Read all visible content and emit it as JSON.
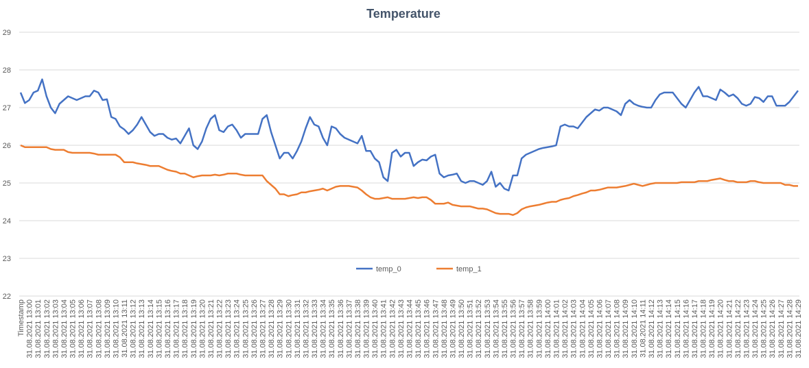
{
  "chart_data": {
    "type": "line",
    "title": "Temperature",
    "categories": [
      "Timestamp",
      null,
      "31.08.2021 13:00",
      null,
      "31.08.2021 13:01",
      null,
      "31.08.2021 13:02",
      null,
      "31.08.2021 13:03",
      null,
      "31.08.2021 13:04",
      null,
      "31.08.2021 13:05",
      null,
      "31.08.2021 13:06",
      null,
      "31.08.2021 13:07",
      null,
      "31.08.2021 13:08",
      null,
      "31.08.2021 13:09",
      null,
      "31.08.2021 13:10",
      null,
      "31.08.2021 13:11",
      null,
      "31.08.2021 13:12",
      null,
      "31.08.2021 13:13",
      null,
      "31.08.2021 13:14",
      null,
      "31.08.2021 13:15",
      null,
      "31.08.2021 13:16",
      null,
      "31.08.2021 13:17",
      null,
      "31.08.2021 13:18",
      null,
      "31.08.2021 13:19",
      null,
      "31.08.2021 13:20",
      null,
      "31.08.2021 13:21",
      null,
      "31.08.2021 13:22",
      null,
      "31.08.2021 13:23",
      null,
      "31.08.2021 13:24",
      null,
      "31.08.2021 13:25",
      null,
      "31.08.2021 13:26",
      null,
      "31.08.2021 13:27",
      null,
      "31.08.2021 13:28",
      null,
      "31.08.2021 13:29",
      null,
      "31.08.2021 13:30",
      null,
      "31.08.2021 13:31",
      null,
      "31.08.2021 13:32",
      null,
      "31.08.2021 13:33",
      null,
      "31.08.2021 13:34",
      null,
      "31.08.2021 13:35",
      null,
      "31.08.2021 13:36",
      null,
      "31.08.2021 13:37",
      null,
      "31.08.2021 13:38",
      null,
      "31.08.2021 13:39",
      null,
      "31.08.2021 13:40",
      null,
      "31.08.2021 13:41",
      null,
      "31.08.2021 13:42",
      null,
      "31.08.2021 13:43",
      null,
      "31.08.2021 13:44",
      null,
      "31.08.2021 13:45",
      null,
      "31.08.2021 13:46",
      null,
      "31.08.2021 13:47",
      null,
      "31.08.2021 13:48",
      null,
      "31.08.2021 13:49",
      null,
      "31.08.2021 13:50",
      null,
      "31.08.2021 13:51",
      null,
      "31.08.2021 13:52",
      null,
      "31.08.2021 13:53",
      null,
      "31.08.2021 13:54",
      null,
      "31.08.2021 13:55",
      null,
      "31.08.2021 13:56",
      null,
      "31.08.2021 13:57",
      null,
      "31.08.2021 13:58",
      null,
      "31.08.2021 13:59",
      null,
      "31.08.2021 14:00",
      null,
      "31.08.2021 14:01",
      null,
      "31.08.2021 14:02",
      null,
      "31.08.2021 14:03",
      null,
      "31.08.2021 14:04",
      null,
      "31.08.2021 14:05",
      null,
      "31.08.2021 14:06",
      null,
      "31.08.2021 14:07",
      null,
      "31.08.2021 14:08",
      null,
      "31.08.2021 14:09",
      null,
      "31.08.2021 14:10",
      null,
      "31.08.2021 14:11",
      null,
      "31.08.2021 14:12",
      null,
      "31.08.2021 14:13",
      null,
      "31.08.2021 14:14",
      null,
      "31.08.2021 14:15",
      null,
      "31.08.2021 14:16",
      null,
      "31.08.2021 14:17",
      null,
      "31.08.2021 14:18",
      null,
      "31.08.2021 14:19",
      null,
      "31.08.2021 14:20",
      null,
      "31.08.2021 14:21",
      null,
      "31.08.2021 14:22",
      null,
      "31.08.2021 14:23",
      null,
      "31.08.2021 14:24",
      null,
      "31.08.2021 14:25",
      null,
      "31.08.2021 14:26",
      null,
      "31.08.2021 14:27",
      null,
      "31.08.2021 14:28",
      null,
      "31.08.2021 14:29"
    ],
    "series": [
      {
        "name": "temp_0",
        "color": "#4472c4",
        "values": [
          27.4,
          27.12,
          27.2,
          27.4,
          27.45,
          27.75,
          27.3,
          27.0,
          26.85,
          27.1,
          27.2,
          27.3,
          27.25,
          27.2,
          27.25,
          27.3,
          27.3,
          27.45,
          27.4,
          27.2,
          27.22,
          26.75,
          26.7,
          26.5,
          26.42,
          26.3,
          26.4,
          26.55,
          26.75,
          26.55,
          26.35,
          26.25,
          26.3,
          26.3,
          26.2,
          26.15,
          26.18,
          26.05,
          26.25,
          26.45,
          26.0,
          25.9,
          26.1,
          26.45,
          26.7,
          26.8,
          26.4,
          26.35,
          26.5,
          26.55,
          26.4,
          26.2,
          26.3,
          26.3,
          26.3,
          26.3,
          26.7,
          26.8,
          26.35,
          26.0,
          25.65,
          25.8,
          25.8,
          25.65,
          25.85,
          26.1,
          26.45,
          26.75,
          26.55,
          26.5,
          26.2,
          26.0,
          26.5,
          26.45,
          26.3,
          26.2,
          26.15,
          26.1,
          26.05,
          26.25,
          25.85,
          25.85,
          25.65,
          25.55,
          25.15,
          25.05,
          25.8,
          25.88,
          25.7,
          25.8,
          25.8,
          25.45,
          25.55,
          25.62,
          25.6,
          25.7,
          25.75,
          25.25,
          25.15,
          25.2,
          25.22,
          25.25,
          25.05,
          25.0,
          25.05,
          25.05,
          25.0,
          24.95,
          25.05,
          25.3,
          24.9,
          25.0,
          24.85,
          24.8,
          25.2,
          25.2,
          25.65,
          25.75,
          25.8,
          25.85,
          25.9,
          25.93,
          25.95,
          25.97,
          26.0,
          26.5,
          26.55,
          26.5,
          26.5,
          26.45,
          26.6,
          26.75,
          26.85,
          26.95,
          26.92,
          27.0,
          27.0,
          26.95,
          26.9,
          26.8,
          27.1,
          27.2,
          27.1,
          27.05,
          27.02,
          27.0,
          27.0,
          27.2,
          27.35,
          27.4,
          27.4,
          27.4,
          27.25,
          27.1,
          27.0,
          27.2,
          27.4,
          27.55,
          27.3,
          27.3,
          27.25,
          27.2,
          27.48,
          27.4,
          27.3,
          27.35,
          27.25,
          27.1,
          27.05,
          27.1,
          27.28,
          27.25,
          27.15,
          27.3,
          27.3,
          27.05,
          27.05,
          27.05,
          27.15,
          27.3,
          27.45
        ]
      },
      {
        "name": "temp_1",
        "color": "#ed7d31",
        "values": [
          26.0,
          25.95,
          25.95,
          25.95,
          25.95,
          25.95,
          25.95,
          25.9,
          25.88,
          25.88,
          25.88,
          25.82,
          25.8,
          25.8,
          25.8,
          25.8,
          25.8,
          25.78,
          25.75,
          25.75,
          25.75,
          25.75,
          25.75,
          25.68,
          25.55,
          25.55,
          25.55,
          25.52,
          25.5,
          25.48,
          25.45,
          25.45,
          25.45,
          25.4,
          25.35,
          25.32,
          25.3,
          25.25,
          25.25,
          25.2,
          25.15,
          25.18,
          25.2,
          25.2,
          25.2,
          25.22,
          25.2,
          25.22,
          25.25,
          25.25,
          25.25,
          25.22,
          25.2,
          25.2,
          25.2,
          25.2,
          25.2,
          25.05,
          24.95,
          24.85,
          24.7,
          24.7,
          24.65,
          24.68,
          24.7,
          24.75,
          24.75,
          24.78,
          24.8,
          24.82,
          24.85,
          24.8,
          24.85,
          24.9,
          24.92,
          24.92,
          24.92,
          24.9,
          24.88,
          24.8,
          24.7,
          24.62,
          24.58,
          24.58,
          24.6,
          24.62,
          24.58,
          24.58,
          24.58,
          24.58,
          24.6,
          24.62,
          24.6,
          24.62,
          24.62,
          24.55,
          24.45,
          24.45,
          24.45,
          24.48,
          24.42,
          24.4,
          24.38,
          24.38,
          24.38,
          24.35,
          24.32,
          24.32,
          24.3,
          24.25,
          24.2,
          24.18,
          24.18,
          24.18,
          24.15,
          24.2,
          24.3,
          24.35,
          24.38,
          24.4,
          24.42,
          24.45,
          24.48,
          24.5,
          24.5,
          24.55,
          24.58,
          24.6,
          24.65,
          24.68,
          24.72,
          24.75,
          24.8,
          24.8,
          24.82,
          24.85,
          24.88,
          24.88,
          24.88,
          24.9,
          24.92,
          24.95,
          24.98,
          24.95,
          24.92,
          24.95,
          24.98,
          25.0,
          25.0,
          25.0,
          25.0,
          25.0,
          25.0,
          25.02,
          25.02,
          25.02,
          25.02,
          25.05,
          25.05,
          25.05,
          25.08,
          25.1,
          25.12,
          25.08,
          25.05,
          25.05,
          25.02,
          25.02,
          25.02,
          25.05,
          25.05,
          25.02,
          25.0,
          25.0,
          25.0,
          25.0,
          25.0,
          24.95,
          24.95,
          24.92,
          24.92
        ]
      }
    ],
    "ylim": [
      22,
      29
    ],
    "yticks": [
      22,
      23,
      24,
      25,
      26,
      27,
      28,
      29
    ],
    "grid": true,
    "legend": "bottom"
  }
}
